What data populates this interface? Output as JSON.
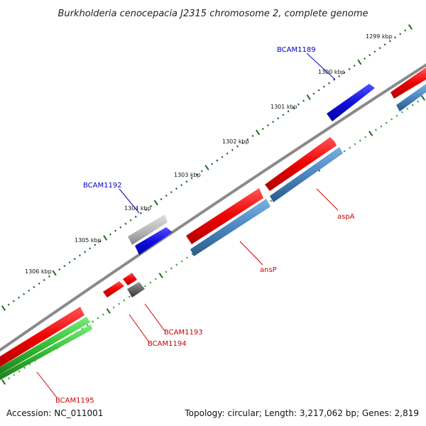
{
  "title": "Burkholderia cenocepacia J2315 chromosome 2, complete genome",
  "footer": {
    "accession": "Accession: NC_011001",
    "topology": "Topology: circular; Length: 3,217,062 bp; Genes: 2,819"
  },
  "kbp_labels": [
    "1299 kbp",
    "1300 kbp",
    "1301 kbp",
    "1302 kbp",
    "1303 kbp",
    "1304 kbp",
    "1305 kbp",
    "1306 kbp"
  ],
  "gene_labels": [
    {
      "id": "BCAM1189",
      "color": "#0000cc"
    },
    {
      "id": "BCAM1192",
      "color": "#0000cc"
    },
    {
      "id": "aspA",
      "color": "#cc0000"
    },
    {
      "id": "ansP",
      "color": "#cc0000"
    },
    {
      "id": "BCAM1193",
      "color": "#cc0000"
    },
    {
      "id": "BCAM1194",
      "color": "#cc0000"
    },
    {
      "id": "BCAM1195",
      "color": "#cc0000"
    }
  ],
  "colors": {
    "backbone": "#8a8a8a",
    "red_feature": "#ee0000",
    "blue_feature": "#1010e0",
    "steelblue_feature": "#4a86c0",
    "green_feature": "#33bb33",
    "gray_feature": "#bbbbbb",
    "darkgray_feature": "#666666",
    "tick_dark": "#226622",
    "tick_green": "#33aa33"
  }
}
